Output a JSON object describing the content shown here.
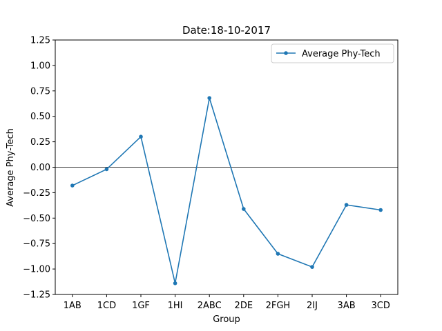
{
  "chart_data": {
    "type": "line",
    "title": "Date:18-10-2017",
    "xlabel": "Group",
    "ylabel": "Average Phy-Tech",
    "categories": [
      "1AB",
      "1CD",
      "1GF",
      "1HI",
      "2ABC",
      "2DE",
      "2FGH",
      "2IJ",
      "3AB",
      "3CD"
    ],
    "series": [
      {
        "name": "Average Phy-Tech",
        "values": [
          -0.18,
          -0.02,
          0.3,
          -1.14,
          0.68,
          -0.41,
          -0.85,
          -0.98,
          -0.37,
          -0.42
        ],
        "color": "#1f77b4"
      }
    ],
    "ylim": [
      -1.25,
      1.25
    ],
    "yticks": [
      "−1.25",
      "−1.00",
      "−0.75",
      "−0.50",
      "−0.25",
      "0.00",
      "0.25",
      "0.50",
      "0.75",
      "1.00",
      "1.25"
    ],
    "ytick_values": [
      -1.25,
      -1.0,
      -0.75,
      -0.5,
      -0.25,
      0.0,
      0.25,
      0.5,
      0.75,
      1.0,
      1.25
    ],
    "zero_line": true,
    "grid": false,
    "legend_position": "top-right"
  }
}
